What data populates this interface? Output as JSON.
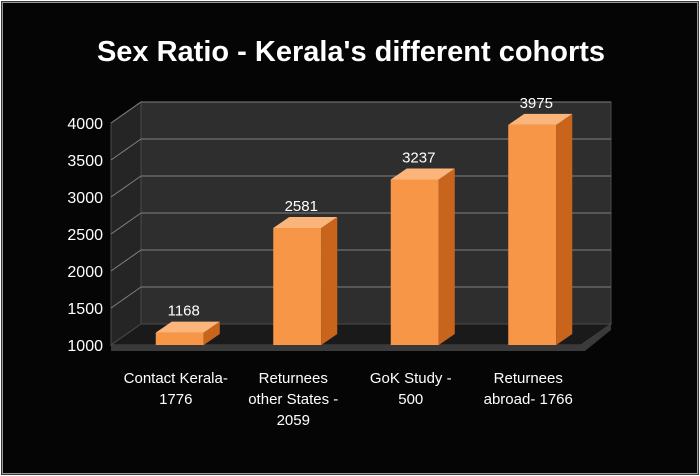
{
  "chart_data": {
    "type": "bar",
    "title": "Sex Ratio - Kerala's different cohorts",
    "categories": [
      [
        "Contact Kerala-",
        "1776"
      ],
      [
        "Returnees",
        "other States -",
        "2059"
      ],
      [
        "GoK Study -",
        "500"
      ],
      [
        "Returnees",
        "abroad- 1766"
      ]
    ],
    "values": [
      1168,
      2581,
      3237,
      3975
    ],
    "data_labels": [
      "1168",
      "2581",
      "3237",
      "3975"
    ],
    "ylim": [
      1000,
      4000
    ],
    "yticks": [
      1000,
      1500,
      2000,
      2500,
      3000,
      3500,
      4000
    ],
    "ytick_labels": [
      "1000",
      "1500",
      "2000",
      "2500",
      "3000",
      "3500",
      "4000"
    ],
    "grid": true,
    "style": "3d",
    "legend": "none",
    "colors": {
      "background": "#050505",
      "bar_front": "#F79646",
      "bar_top": "#FBB57B",
      "bar_side": "#C8641B",
      "wall": "#2E2E2E",
      "floor": "#1A1A1A",
      "gridline": "#808080",
      "text": "#FFFFFF"
    }
  }
}
